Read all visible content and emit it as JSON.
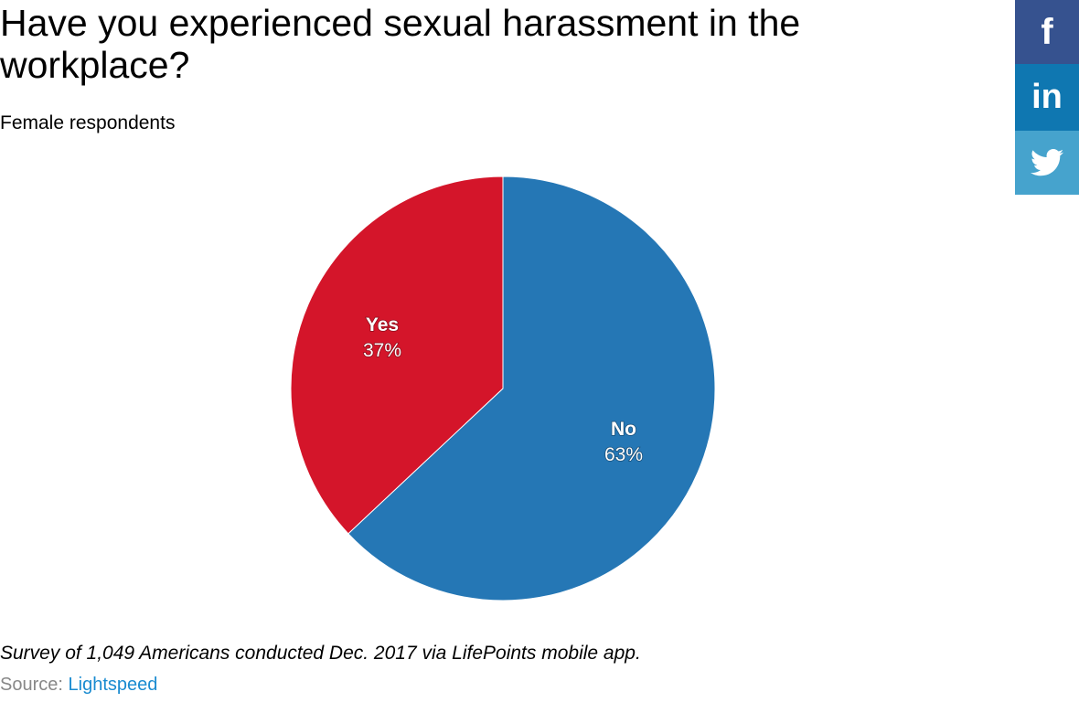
{
  "chart_data": {
    "type": "pie",
    "title": "Have you experienced sexual harassment in the workplace?",
    "subtitle": "Female respondents",
    "slices": [
      {
        "label": "No",
        "value": 63,
        "display": "63%",
        "color": "#2577b5"
      },
      {
        "label": "Yes",
        "value": 37,
        "display": "37%",
        "color": "#d4152a"
      }
    ],
    "note": "Survey of 1,049 Americans conducted Dec. 2017 via LifePoints mobile app.",
    "source_label": "Source:",
    "source_link": "Lightspeed"
  },
  "social": [
    {
      "name": "facebook",
      "glyph": "f",
      "color": "#36528f"
    },
    {
      "name": "linkedin",
      "glyph": "in",
      "color": "#0f77b1"
    },
    {
      "name": "twitter",
      "glyph": "twitter-bird-icon",
      "color": "#46a3cd"
    }
  ]
}
